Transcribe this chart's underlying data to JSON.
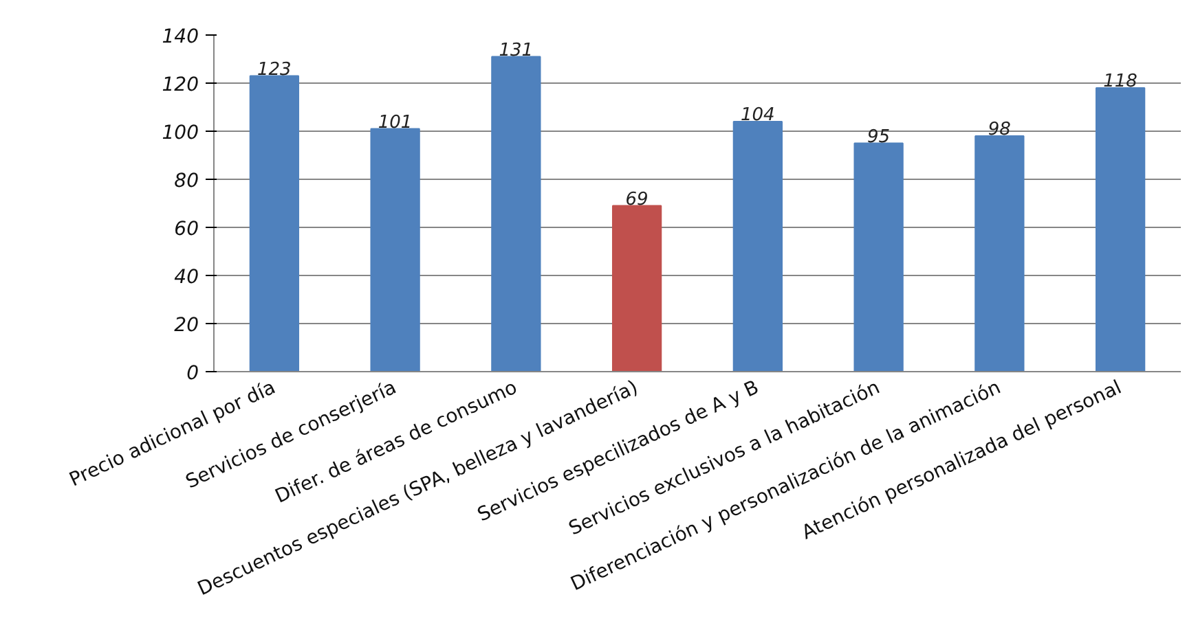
{
  "chart_data": {
    "type": "bar",
    "categories": [
      "Precio adicional por día",
      "Servicios de conserjería",
      "Difer. de áreas de consumo",
      "Descuentos especiales (SPA, belleza y lavandería)",
      "Servicios especilizados de A y B",
      "Servicios exclusivos a la habitación",
      "Diferenciación y personalización de la animación",
      "Atención personalizada del personal"
    ],
    "values": [
      123,
      101,
      131,
      69,
      104,
      95,
      98,
      118
    ],
    "colors": [
      "#4f81bd",
      "#4f81bd",
      "#4f81bd",
      "#c0504d",
      "#4f81bd",
      "#4f81bd",
      "#4f81bd",
      "#4f81bd"
    ],
    "ylim": [
      0,
      140
    ],
    "yticks": [
      0,
      20,
      40,
      60,
      80,
      100,
      120,
      140
    ],
    "grid": "y",
    "data_labels": true
  }
}
